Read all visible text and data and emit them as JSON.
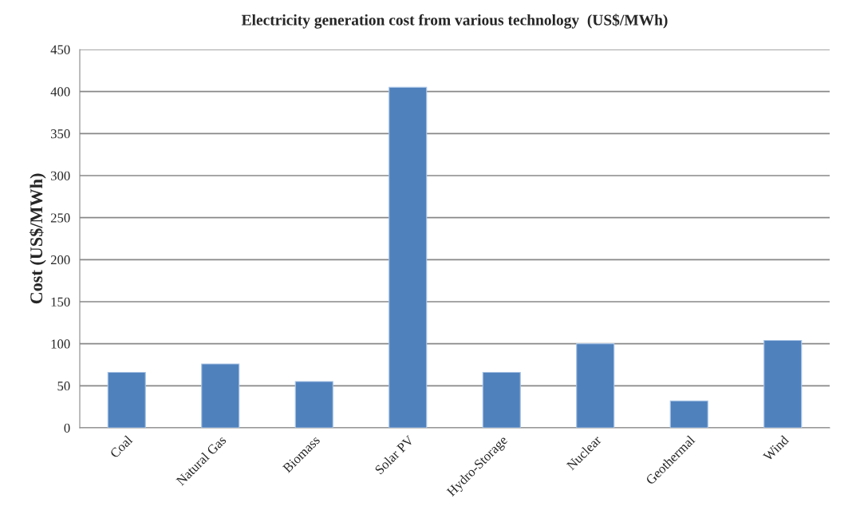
{
  "chart_data": {
    "type": "bar",
    "title": "Electricity generation cost from various technology  (US$/MWh)",
    "ylabel": "Cost (US$/MWh)",
    "categories": [
      "Coal",
      "Natural Gas",
      "Biomass",
      "Solar PV",
      "Hydro-Storage",
      "Nuclear",
      "Geothermal",
      "Wind"
    ],
    "values": [
      66,
      76,
      55,
      405,
      66,
      100,
      32,
      104
    ],
    "color": "#4f81bd",
    "ylim": [
      0,
      450
    ],
    "yticks": [
      0,
      50,
      100,
      150,
      200,
      250,
      300,
      350,
      400,
      450
    ],
    "grid": "y"
  }
}
